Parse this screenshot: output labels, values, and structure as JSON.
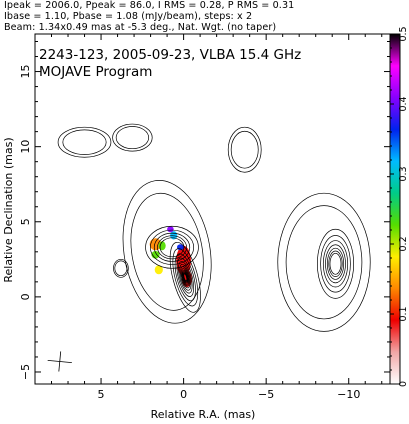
{
  "header": {
    "line1": "Ipeak = 2006.0, Ppeak = 86.0, I RMS = 0.28, P RMS = 0.31",
    "line2": "Ibase = 1.10, Pbase = 1.08 (mJy/beam), steps: x 2",
    "line3": "Beam: 1.34x0.49 mas at -5.3 deg., Nat. Wgt. (no taper)"
  },
  "chart_data": {
    "type": "heatmap",
    "title": "2243-123, 2005-09-23, VLBA 15.4 GHz",
    "subtitle": "MOJAVE Program",
    "xlabel": "Relative R.A. (mas)",
    "ylabel": "Relative Declination (mas)",
    "xlim": [
      9.0,
      -12.5
    ],
    "ylim": [
      -5.8,
      17.5
    ],
    "xticks": [
      5,
      0,
      -5,
      -10
    ],
    "xtick_labels": [
      "5",
      "0",
      "−5",
      "−10"
    ],
    "yticks": [
      -5,
      0,
      5,
      10,
      15
    ],
    "ytick_labels": [
      "−5",
      "0",
      "5",
      "10",
      "15"
    ],
    "colorbar": {
      "range": [
        0,
        0.5
      ],
      "ticks": [
        0,
        0.1,
        0.2,
        0.3,
        0.4,
        0.5
      ],
      "tick_labels": [
        "0",
        "0.1",
        "0.2",
        "0.3",
        "0.4",
        "0.5"
      ],
      "stops": [
        "#ffffff",
        "#f2a6a6",
        "#ee0000",
        "#ff8800",
        "#ffee00",
        "#55dd00",
        "#00cc88",
        "#00bbff",
        "#0022ee",
        "#8800ff",
        "#ff00ff",
        "#000000"
      ]
    },
    "contour_components": [
      {
        "name": "core",
        "x": -0.1,
        "y": 1.3,
        "sx": 0.75,
        "sy": 2.4,
        "rot": -15,
        "levels": 13
      },
      {
        "name": "core-north",
        "x": 0.7,
        "y": 3.3,
        "sx": 1.6,
        "sy": 1.4,
        "rot": 0,
        "levels": 5
      },
      {
        "name": "envelope",
        "x": 1.0,
        "y": 3.0,
        "sx": 2.6,
        "sy": 4.8,
        "rot": -10,
        "levels": 2
      },
      {
        "name": "west-lobe",
        "x": -9.2,
        "y": 2.2,
        "sx": 1.1,
        "sy": 2.3,
        "rot": 0,
        "levels": 7
      },
      {
        "name": "west-envelope",
        "x": -8.5,
        "y": 2.3,
        "sx": 2.8,
        "sy": 4.6,
        "rot": 0,
        "levels": 2
      },
      {
        "name": "ne-blob",
        "x": 6.0,
        "y": 10.3,
        "sx": 1.6,
        "sy": 1.0,
        "rot": 0,
        "levels": 2
      },
      {
        "name": "n-blob",
        "x": 3.1,
        "y": 10.6,
        "sx": 1.2,
        "sy": 0.9,
        "rot": 0,
        "levels": 2
      },
      {
        "name": "mid-blob",
        "x": -3.7,
        "y": 9.8,
        "sx": 1.0,
        "sy": 1.5,
        "rot": 0,
        "levels": 2
      },
      {
        "name": "e-blob",
        "x": 3.8,
        "y": 1.9,
        "sx": 0.45,
        "sy": 0.6,
        "rot": 0,
        "levels": 2
      }
    ],
    "polarization_knots": [
      {
        "x": 0.0,
        "y": 2.4,
        "sx": 0.45,
        "sy": 1.0,
        "value": 0.08
      },
      {
        "x": -0.2,
        "y": 1.2,
        "sx": 0.3,
        "sy": 0.55,
        "value": 0.1
      },
      {
        "x": 1.7,
        "y": 3.5,
        "sx": 0.35,
        "sy": 0.4,
        "value": 0.12
      },
      {
        "x": 1.3,
        "y": 3.4,
        "sx": 0.22,
        "sy": 0.3,
        "value": 0.22
      },
      {
        "x": 1.7,
        "y": 2.8,
        "sx": 0.25,
        "sy": 0.25,
        "value": 0.21
      },
      {
        "x": 1.5,
        "y": 1.8,
        "sx": 0.25,
        "sy": 0.3,
        "value": 0.18
      },
      {
        "x": 0.6,
        "y": 4.1,
        "sx": 0.22,
        "sy": 0.28,
        "value": 0.3
      },
      {
        "x": 0.2,
        "y": 3.3,
        "sx": 0.2,
        "sy": 0.2,
        "value": 0.36
      },
      {
        "x": 0.8,
        "y": 4.5,
        "sx": 0.2,
        "sy": 0.2,
        "value": 0.42
      }
    ],
    "beam": {
      "major": 1.34,
      "minor": 0.49,
      "pa": -5.3
    },
    "grid": false
  }
}
